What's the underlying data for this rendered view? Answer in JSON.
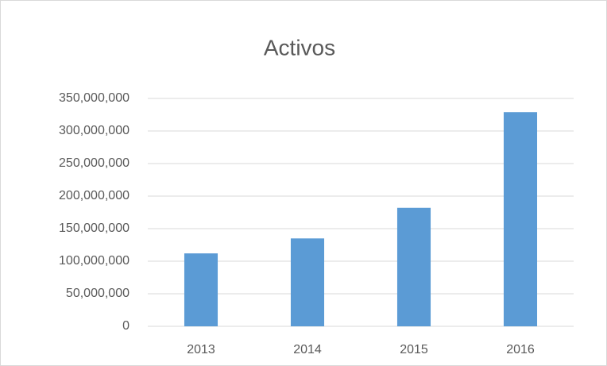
{
  "chart_data": {
    "type": "bar",
    "title": "Activos",
    "categories": [
      "2013",
      "2014",
      "2015",
      "2016"
    ],
    "values": [
      112000000,
      135000000,
      182000000,
      329000000
    ],
    "color": "#5b9bd5",
    "ylim": [
      0,
      350000000
    ],
    "yticks": [
      0,
      {
        "value": 50000000,
        "label": "50,000,000"
      },
      {
        "value": 100000000,
        "label": "100,000,000"
      },
      {
        "value": 150000000,
        "label": "150,000,000"
      },
      {
        "value": 200000000,
        "label": "200,000,000"
      },
      {
        "value": 250000000,
        "label": "250,000,000"
      },
      {
        "value": 300000000,
        "label": "300,000,000"
      },
      {
        "value": 350000000,
        "label": "350,000,000"
      }
    ],
    "grid": true
  }
}
